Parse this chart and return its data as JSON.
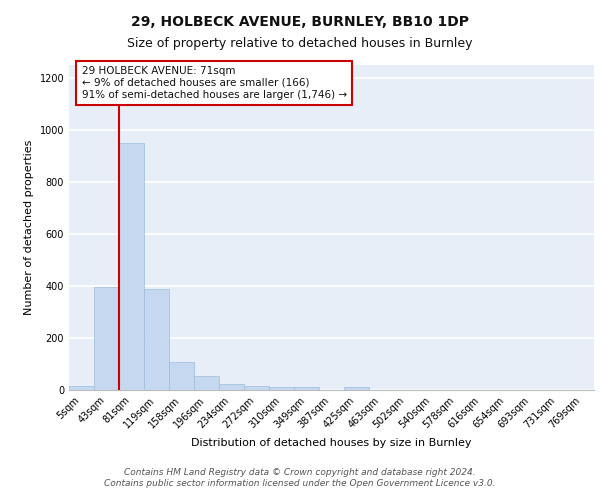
{
  "title_line1": "29, HOLBECK AVENUE, BURNLEY, BB10 1DP",
  "title_line2": "Size of property relative to detached houses in Burnley",
  "xlabel": "Distribution of detached houses by size in Burnley",
  "ylabel": "Number of detached properties",
  "footer_line1": "Contains HM Land Registry data © Crown copyright and database right 2024.",
  "footer_line2": "Contains public sector information licensed under the Open Government Licence v3.0.",
  "annotation_line1": "29 HOLBECK AVENUE: 71sqm",
  "annotation_line2": "← 9% of detached houses are smaller (166)",
  "annotation_line3": "91% of semi-detached houses are larger (1,746) →",
  "categories": [
    "5sqm",
    "43sqm",
    "81sqm",
    "119sqm",
    "158sqm",
    "196sqm",
    "234sqm",
    "272sqm",
    "310sqm",
    "349sqm",
    "387sqm",
    "425sqm",
    "463sqm",
    "502sqm",
    "540sqm",
    "578sqm",
    "616sqm",
    "654sqm",
    "693sqm",
    "731sqm",
    "769sqm"
  ],
  "values": [
    15,
    395,
    950,
    390,
    108,
    52,
    25,
    15,
    12,
    10,
    0,
    12,
    0,
    0,
    0,
    0,
    0,
    0,
    0,
    0,
    0
  ],
  "bar_color": "#c5d8f0",
  "bar_edge_color": "#9bbde0",
  "vline_color": "#cc0000",
  "vline_x": 1.5,
  "annotation_box_color": "#cc0000",
  "annotation_box_facecolor": "white",
  "ylim": [
    0,
    1250
  ],
  "yticks": [
    0,
    200,
    400,
    600,
    800,
    1000,
    1200
  ],
  "background_color": "#e8eef8",
  "grid_color": "white",
  "title_fontsize": 10,
  "subtitle_fontsize": 9,
  "axis_label_fontsize": 8,
  "tick_fontsize": 7,
  "annotation_fontsize": 7.5,
  "footer_fontsize": 6.5
}
